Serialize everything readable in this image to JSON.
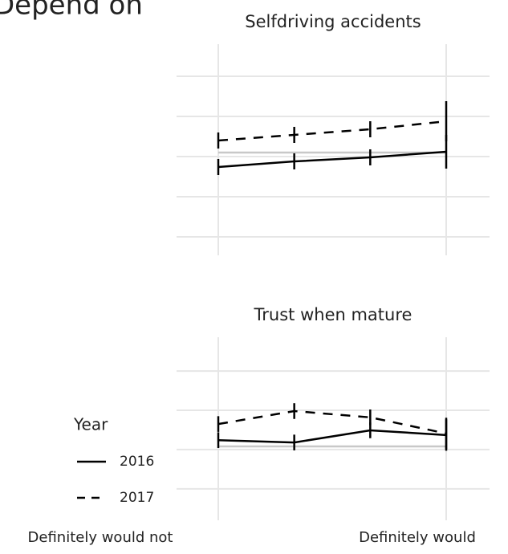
{
  "chart_data": {
    "type": "line",
    "title": "Depend on",
    "categories": [
      "Definitely would not",
      null,
      null,
      "Definitely would"
    ],
    "legend_title": "Year",
    "grid": true,
    "panels": [
      {
        "title": "Selfdriving accidents",
        "ylim": [
          -2.46,
          2.8
        ],
        "yticks": [
          -2,
          -1,
          0,
          1,
          2
        ],
        "reference": 0.1,
        "series": [
          {
            "name": "2016",
            "color": "#000000",
            "dash": false,
            "values": [
              -0.26,
              -0.12,
              -0.02,
              0.12
            ],
            "errors": [
              0.2,
              0.2,
              0.2,
              0.42
            ]
          },
          {
            "name": "2017",
            "color": "#000000",
            "dash": true,
            "values": [
              0.4,
              0.54,
              0.68,
              0.88
            ],
            "errors": [
              0.2,
              0.2,
              0.2,
              0.5
            ]
          }
        ]
      },
      {
        "title": "Trust when mature",
        "ylim": [
          -1.8,
          2.86
        ],
        "yticks": [
          -1,
          0,
          1,
          2
        ],
        "reference": 0.08,
        "series": [
          {
            "name": "2016",
            "color": "#000000",
            "dash": false,
            "values": [
              0.24,
              0.18,
              0.49,
              0.37
            ],
            "errors": [
              0.2,
              0.2,
              0.2,
              0.4
            ]
          },
          {
            "name": "2017",
            "color": "#000000",
            "dash": true,
            "values": [
              0.65,
              0.98,
              0.82,
              0.41
            ],
            "errors": [
              0.2,
              0.2,
              0.2,
              0.4
            ]
          }
        ]
      }
    ]
  }
}
